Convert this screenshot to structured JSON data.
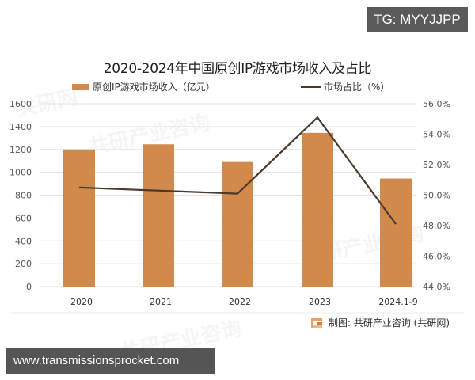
{
  "badges": {
    "top_right": "TG: MYYJJPP",
    "bottom_left": "www.transmissionsprocket.com"
  },
  "source": {
    "icon": "gongyan-logo-icon",
    "text": "制图: 共研产业咨询 (共研网)"
  },
  "colors": {
    "bar": "#d28a4c",
    "line": "#4a3b2e",
    "grid": "#e3e3e3",
    "axis_text": "#555555"
  },
  "chart_data": {
    "type": "bar+line",
    "title": "2020-2024年中国原创IP游戏市场收入及占比",
    "categories": [
      "2020",
      "2021",
      "2022",
      "2023",
      "2024.1-9"
    ],
    "series": [
      {
        "name": "原创IP游戏市场收入（亿元）",
        "type": "bar",
        "axis": "left",
        "values": [
          1200,
          1245,
          1090,
          1345,
          945
        ]
      },
      {
        "name": "市场占比（%）",
        "type": "line",
        "axis": "right",
        "values": [
          50.5,
          50.3,
          50.1,
          55.1,
          48.1
        ]
      }
    ],
    "y_left": {
      "ylim": [
        0,
        1600
      ],
      "ticks": [
        "0",
        "200",
        "400",
        "600",
        "800",
        "1000",
        "1200",
        "1400",
        "1600"
      ]
    },
    "y_right": {
      "ylim": [
        44.0,
        56.0
      ],
      "ticks": [
        "44.0%",
        "46.0%",
        "48.0%",
        "50.0%",
        "52.0%",
        "54.0%",
        "56.0%"
      ]
    },
    "xlabel": "",
    "ylabel": "",
    "grid": true,
    "legend_position": "top"
  }
}
